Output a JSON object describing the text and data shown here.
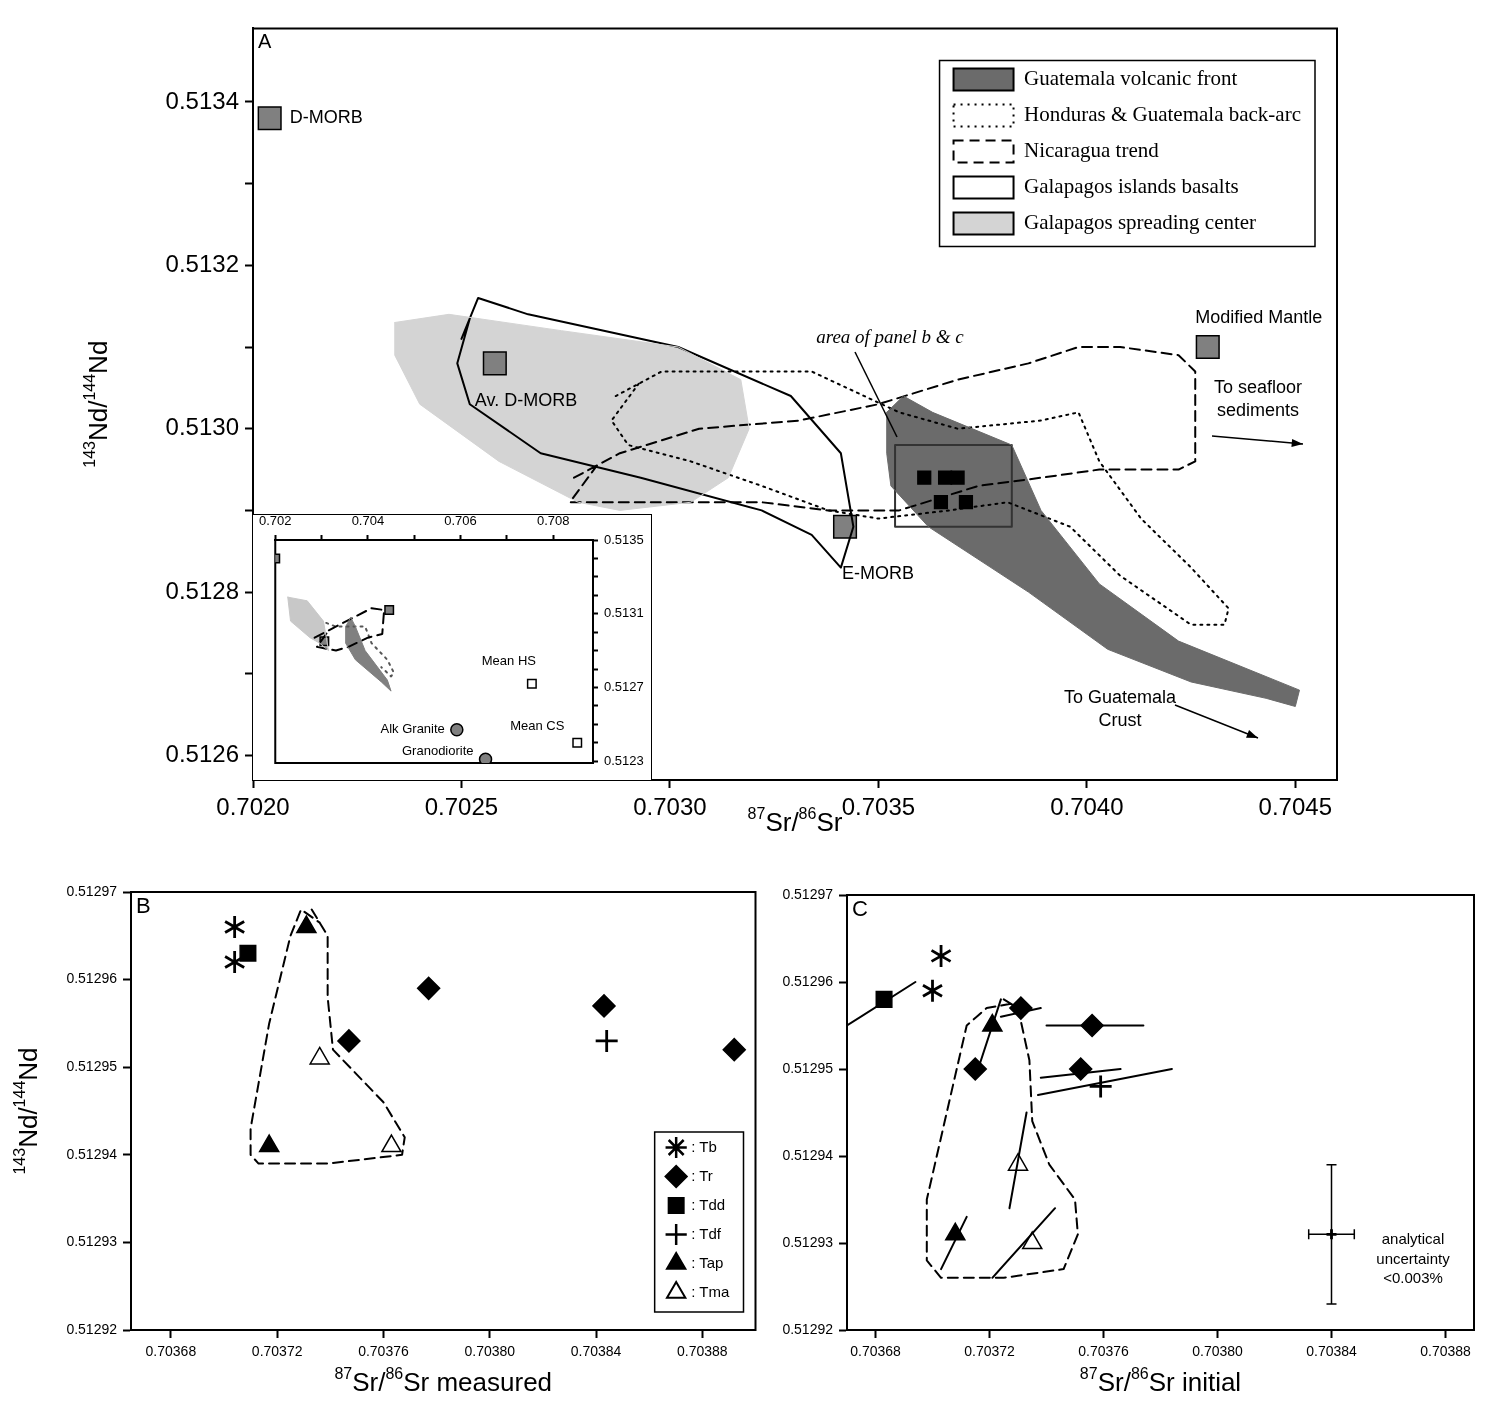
{
  "chart_data": [
    {
      "type": "scatter",
      "xlabel": "$^{87}$Sr/$^{86}$Sr",
      "ylabel": "$^{143}$Nd/$^{144}$Nd",
      "xlim": [
        0.702,
        0.7046
      ],
      "ylim": [
        0.51257,
        0.51349
      ],
      "xticks": [
        {
          "value": 0.702,
          "label": "0.7020"
        },
        0.7025,
        {
          "value": 0.703,
          "label": "0.7030"
        },
        0.7035,
        {
          "value": 0.704,
          "label": "0.7040"
        },
        0.7045
      ],
      "yticks": [
        0.5126,
        {
          "value": 0.5127,
          "label": null
        },
        0.5128,
        {
          "value": 0.5129,
          "label": null
        },
        {
          "value": 0.513,
          "label": "0.5130"
        },
        {
          "value": 0.5131,
          "label": null
        },
        0.5132,
        {
          "value": 0.5133,
          "label": null
        },
        0.5134
      ],
      "legend": "top right",
      "annotations": [
        "A",
        {
          "text": "D-MORB",
          "x": 0.70204,
          "y": 0.51338
        },
        {
          "text": "Av. D-MORB",
          "x": 0.70258,
          "y": 0.51308
        },
        {
          "text": "E-MORB",
          "x": 0.70342,
          "y": 0.51288
        },
        {
          "text": "Modified Mantle",
          "x": 0.70429,
          "y": 0.5131
        },
        "area of panel b & c",
        "To seafloor sediments",
        "To Guatemala Crust"
      ],
      "series": [
        {
          "name": "Galapagos spreading center",
          "type": "area",
          "color": "#d4d4d4",
          "x": [
            0.70234,
            0.70247,
            0.70274,
            0.70302,
            0.70317,
            0.70319,
            0.70314,
            0.70305,
            0.70288,
            0.70278,
            0.70259,
            0.7024,
            0.70234,
            0.70234
          ],
          "values": [
            0.51313,
            0.51314,
            0.51312,
            0.5131,
            0.51306,
            0.513,
            0.51294,
            0.51291,
            0.5129,
            0.51291,
            0.51296,
            0.51303,
            0.51309,
            0.51313
          ]
        },
        {
          "name": "Galapagos islands basalts",
          "type": "line",
          "line_style": "solid",
          "color": "#000000",
          "x": [
            0.7025,
            0.70254,
            0.70266,
            0.70302,
            0.70329,
            0.70341,
            0.70344,
            0.70341,
            0.70334,
            0.70322,
            0.70293,
            0.70269,
            0.70252,
            0.70249,
            0.70252
          ],
          "values": [
            0.51311,
            0.51316,
            0.51314,
            0.5131,
            0.51304,
            0.51297,
            0.51288,
            0.51283,
            0.51287,
            0.5129,
            0.51294,
            0.51297,
            0.51303,
            0.51308,
            0.513135
          ]
        },
        {
          "name": "Guatemala volcanic front",
          "type": "area",
          "color": "#6b6b6b",
          "x": [
            0.70352,
            0.70356,
            0.70363,
            0.70382,
            0.70389,
            0.70403,
            0.70422,
            0.70451,
            0.7045,
            0.70443,
            0.70425,
            0.70405,
            0.70386,
            0.70377,
            0.70362,
            0.70353,
            0.70352,
            0.70352
          ],
          "values": [
            0.51302,
            0.51304,
            0.51302,
            0.51298,
            0.5129,
            0.51281,
            0.51274,
            0.51268,
            0.51266,
            0.51267,
            0.51269,
            0.51273,
            0.5128,
            0.51283,
            0.51288,
            0.51293,
            0.51297,
            0.51302
          ]
        },
        {
          "name": "Honduras & Guatemala back-arc",
          "type": "line",
          "line_style": "dotted",
          "color": "#000000",
          "x": [
            0.70287,
            0.70298,
            0.70317,
            0.70334,
            0.70355,
            0.70369,
            0.70389,
            0.70398,
            0.70403,
            0.70413,
            0.70425,
            0.70434,
            0.70433,
            0.70425,
            0.70408,
            0.70396,
            0.70381,
            0.70367,
            0.7035,
            0.70338,
            0.70322,
            0.70305,
            0.7029,
            0.70286,
            0.702925
          ],
          "values": [
            0.51304,
            0.51307,
            0.51307,
            0.51307,
            0.51302,
            0.513,
            0.51301,
            0.51302,
            0.51296,
            0.51289,
            0.51283,
            0.51278,
            0.51276,
            0.51276,
            0.51282,
            0.51288,
            0.51291,
            0.5129,
            0.51289,
            0.5129,
            0.51293,
            0.51296,
            0.51298,
            0.51301,
            0.513055
          ]
        },
        {
          "name": "Nicaragua trend",
          "type": "line",
          "line_style": "dashed",
          "color": "#000000",
          "x": [
            0.70277,
            0.70288,
            0.70307,
            0.70331,
            0.7035,
            0.70369,
            0.70386,
            0.70398,
            0.70408,
            0.70422,
            0.70426,
            0.70426,
            0.70422,
            0.70403,
            0.70389,
            0.70374,
            0.70355,
            0.70338,
            0.70322,
            0.70302,
            0.70283,
            0.70276,
            0.702825
          ],
          "values": [
            0.51294,
            0.51297,
            0.513,
            0.51301,
            0.51303,
            0.51306,
            0.51308,
            0.5131,
            0.5131,
            0.51309,
            0.51307,
            0.51296,
            0.51295,
            0.51295,
            0.51294,
            0.51293,
            0.5129,
            0.5129,
            0.51291,
            0.51291,
            0.51291,
            0.51291,
            0.512955
          ]
        },
        {
          "type": "line",
          "line_style": "solid",
          "color": "#333333",
          "x": [
            0.70354,
            0.70382,
            0.70382,
            0.70354,
            0.70354,
            0.70368
          ],
          "values": [
            0.51298,
            0.51298,
            0.51288,
            0.51288,
            0.51298,
            0.51298
          ]
        },
        {
          "type": "scatter",
          "marker": "square",
          "color": "#808080",
          "x": [
            0.70204,
            0.70258,
            0.70342,
            0.70429
          ],
          "values": [
            0.51338,
            0.51308,
            0.51288,
            0.5131
          ]
        },
        {
          "type": "scatter",
          "marker": "square",
          "color": "#000000",
          "x": [
            0.70361,
            0.70366,
            0.70369,
            0.70365,
            0.70371
          ],
          "values": [
            0.51294,
            0.51294,
            0.51294,
            0.51291,
            0.51291
          ]
        }
      ]
    },
    {
      "type": "scatter",
      "xlim": [
        0.702,
        0.70886
      ],
      "ylim": [
        0.51229,
        0.5135
      ],
      "xticks": [
        0.702,
        {
          "value": 0.703,
          "label": null
        },
        0.704,
        {
          "value": 0.705,
          "label": null
        },
        0.706,
        {
          "value": 0.707,
          "label": null
        },
        0.708
      ],
      "yticks": [
        0.5123,
        {
          "value": 0.5124,
          "label": null
        },
        {
          "value": 0.5125,
          "label": null
        },
        {
          "value": 0.5126,
          "label": null
        },
        0.5127,
        {
          "value": 0.5128,
          "label": null
        },
        {
          "value": 0.5129,
          "label": null
        },
        {
          "value": 0.513,
          "label": null
        },
        0.5131,
        {
          "value": 0.5132,
          "label": null
        },
        {
          "value": 0.5133,
          "label": null
        },
        {
          "value": 0.5134,
          "label": null
        },
        0.5135
      ],
      "annotations": [
        {
          "text": "Mean HS",
          "x": 0.70754,
          "y": 0.51272
        },
        {
          "text": "Mean CS",
          "x": 0.70852,
          "y": 0.5124
        },
        {
          "text": "Alk Granite",
          "x": 0.70592,
          "y": 0.51247
        },
        {
          "text": "Granodiorite",
          "x": 0.70654,
          "y": 0.51231
        }
      ],
      "series": [
        {
          "type": "area",
          "color": "#c8c8c8",
          "x": [
            0.70227,
            0.70269,
            0.70304,
            0.70315,
            0.70296,
            0.70275,
            0.70233,
            0.70227
          ],
          "values": [
            0.51319,
            0.51317,
            0.51306,
            0.5129,
            0.51294,
            0.51297,
            0.51306,
            0.51319
          ]
        },
        {
          "type": "area",
          "color": "#808080",
          "x": [
            0.70363,
            0.70373,
            0.70394,
            0.70442,
            0.7045,
            0.70429,
            0.70373,
            0.70352,
            0.70352,
            0.70363
          ],
          "values": [
            0.51308,
            0.51303,
            0.5129,
            0.51274,
            0.51268,
            0.51273,
            0.51285,
            0.51294,
            0.51303,
            0.51308
          ]
        },
        {
          "type": "line",
          "line_style": "dashed",
          "color": "#000000",
          "x": [
            0.70285,
            0.70346,
            0.70408,
            0.70435,
            0.70431,
            0.704,
            0.70358,
            0.70331,
            0.7029,
            0.703155
          ],
          "values": [
            0.51297,
            0.51305,
            0.51313,
            0.51312,
            0.51299,
            0.51297,
            0.51292,
            0.5129,
            0.51292,
            0.51301
          ]
        },
        {
          "type": "line",
          "line_style": "dotted",
          "color": "#555555",
          "x": [
            0.7031,
            0.70331,
            0.70379,
            0.70394,
            0.70408,
            0.70442,
            0.70456,
            0.7045,
            0.70429
          ],
          "values": [
            0.51305,
            0.51303,
            0.51303,
            0.51303,
            0.51294,
            0.51285,
            0.51278,
            0.51276,
            0.51281
          ]
        },
        {
          "type": "scatter",
          "marker": "square",
          "color": "#808080",
          "x": [
            0.702,
            0.70446,
            0.70306
          ],
          "values": [
            0.5134,
            0.51312,
            0.51295
          ]
        },
        {
          "type": "scatter",
          "marker": "circle",
          "color": "#808080",
          "x": [
            0.70592,
            0.70654
          ],
          "values": [
            0.51247,
            0.51231
          ]
        },
        {
          "type": "scatter",
          "marker": "square",
          "color": "#ffffff",
          "x": [
            0.70754,
            0.70852
          ],
          "values": [
            0.51272,
            0.5124
          ]
        }
      ]
    },
    {
      "type": "scatter",
      "xlabel": "$^{87}$Sr/$^{86}$Sr measured",
      "ylabel": "$^{143}$Nd/$^{144}$Nd",
      "xlim": [
        0.703665,
        0.7039
      ],
      "ylim": [
        0.51292,
        0.51297
      ],
      "xticks": [
        0.70368,
        0.70372,
        0.70376,
        {
          "value": 0.7038,
          "label": "0.70380"
        },
        0.70384,
        0.70388
      ],
      "yticks": [
        0.51292,
        0.51293,
        0.51294,
        0.51295,
        0.51296,
        0.51297
      ],
      "legend": "bottom right",
      "annotations": [
        "B"
      ],
      "series": [
        {
          "type": "line",
          "line_style": "dashed",
          "color": "#000000",
          "x": [
            0.703733,
            0.703739,
            0.703739,
            0.703741,
            0.70376,
            0.703768,
            0.703767,
            0.703739,
            0.703713,
            0.70371,
            0.70371,
            0.703717,
            0.703725,
            0.703729,
            0.703736
          ],
          "values": [
            0.512968,
            0.512965,
            0.512958,
            0.512952,
            0.512946,
            0.512942,
            0.51294,
            0.512939,
            0.512939,
            0.51294,
            0.512943,
            0.512955,
            0.512965,
            0.512968,
            0.5129665
          ]
        },
        {
          "name": ": Tb",
          "type": "scatter",
          "marker": "cross",
          "color": "#000000",
          "x": [
            0.703704,
            0.703704
          ],
          "values": [
            0.512966,
            0.512962
          ]
        },
        {
          "name": ": Tr",
          "type": "scatter",
          "marker": "diamond",
          "color": "#000000",
          "x": [
            0.703747,
            0.703777,
            0.703843,
            0.703892
          ],
          "values": [
            0.512953,
            0.512959,
            0.512957,
            0.512952
          ]
        },
        {
          "name": ": Tdd",
          "type": "scatter",
          "marker": "square",
          "color": "#000000",
          "x": [
            0.703709
          ],
          "values": [
            0.512963
          ]
        },
        {
          "name": ": Tdf",
          "type": "scatter",
          "marker": "cross",
          "color": "#000000",
          "x": [
            0.703844
          ],
          "values": [
            0.512953
          ]
        },
        {
          "name": ": Tap",
          "type": "scatter",
          "marker": "triangle",
          "color": "#000000",
          "x": [
            0.703731,
            0.703717
          ],
          "values": [
            0.512966,
            0.512941
          ]
        },
        {
          "name": ": Tma",
          "type": "scatter",
          "marker": "triangle",
          "color": "#ffffff",
          "x": [
            0.703736,
            0.703763
          ],
          "values": [
            0.512951,
            0.512941
          ]
        }
      ]
    },
    {
      "type": "scatter",
      "xlabel": "$^{87}$Sr/$^{86}$Sr initial",
      "xlim": [
        0.70367,
        0.70389
      ],
      "ylim": [
        0.51292,
        0.51297
      ],
      "xticks": [
        0.70368,
        0.70372,
        0.70376,
        {
          "value": 0.7038,
          "label": "0.70380"
        },
        0.70384,
        0.70388
      ],
      "yticks": [
        0.51292,
        0.51293,
        0.51294,
        0.51295,
        0.51296,
        0.51297
      ],
      "annotations": [
        "C",
        "analytical uncertainty <0.003%"
      ],
      "series": [
        {
          "type": "line",
          "line_style": "dashed",
          "color": "#000000",
          "x": [
            0.703725,
            0.70373,
            0.703734,
            0.703735,
            0.703741,
            0.70375,
            0.703751,
            0.703746,
            0.703725,
            0.703703,
            0.703698,
            0.703698,
            0.703705,
            0.703712,
            0.703719,
            0.7037275
          ],
          "values": [
            0.512958,
            0.512957,
            0.512951,
            0.512944,
            0.512939,
            0.512935,
            0.512931,
            0.512927,
            0.512926,
            0.512926,
            0.512928,
            0.512935,
            0.512945,
            0.512955,
            0.512957,
            0.5129575
          ]
        },
        {
          "type": "line",
          "color": "#000000",
          "x": [
            0.70367,
            0.703694
          ],
          "values": [
            0.512955,
            0.51296
          ]
        },
        {
          "type": "line",
          "color": "#000000",
          "x": [
            0.703715,
            0.703724
          ],
          "values": [
            0.512949,
            0.512958
          ]
        },
        {
          "type": "line",
          "color": "#000000",
          "x": [
            0.703724,
            0.703738
          ],
          "values": [
            0.512956,
            0.512957
          ]
        },
        {
          "type": "line",
          "color": "#000000",
          "x": [
            0.70374,
            0.703774
          ],
          "values": [
            0.512955,
            0.512955
          ]
        },
        {
          "type": "line",
          "color": "#000000",
          "x": [
            0.703738,
            0.703766
          ],
          "values": [
            0.512949,
            0.51295
          ]
        },
        {
          "type": "line",
          "color": "#000000",
          "x": [
            0.703737,
            0.703784
          ],
          "values": [
            0.512947,
            0.51295
          ]
        },
        {
          "type": "line",
          "color": "#000000",
          "x": [
            0.703727,
            0.703733
          ],
          "values": [
            0.512934,
            0.512945
          ]
        },
        {
          "type": "line",
          "color": "#000000",
          "x": [
            0.703703,
            0.703712
          ],
          "values": [
            0.512927,
            0.512933
          ]
        },
        {
          "type": "line",
          "color": "#000000",
          "x": [
            0.703721,
            0.703743
          ],
          "values": [
            0.512926,
            0.512934
          ]
        },
        {
          "type": "scatter",
          "marker": "cross",
          "color": "#000000",
          "x": [
            0.703703,
            0.7037
          ],
          "values": [
            0.512963,
            0.512959
          ]
        },
        {
          "type": "scatter",
          "marker": "diamond",
          "color": "#000000",
          "x": [
            0.703715,
            0.703731,
            0.703756,
            0.703752
          ],
          "values": [
            0.51295,
            0.512957,
            0.512955,
            0.51295
          ]
        },
        {
          "type": "scatter",
          "marker": "square",
          "color": "#000000",
          "x": [
            0.703683
          ],
          "values": [
            0.512958
          ]
        },
        {
          "type": "scatter",
          "marker": "cross",
          "color": "#000000",
          "x": [
            0.703759
          ],
          "values": [
            0.512948
          ]
        },
        {
          "type": "scatter",
          "marker": "triangle",
          "color": "#000000",
          "x": [
            0.703721,
            0.703708
          ],
          "values": [
            0.512955,
            0.512931
          ]
        },
        {
          "type": "scatter",
          "marker": "triangle",
          "color": "#ffffff",
          "x": [
            0.70373,
            0.703735
          ],
          "values": [
            0.512939,
            0.51293
          ]
        },
        {
          "type": "scatter",
          "marker": "cross",
          "color": "#000000",
          "x": [
            0.70384
          ],
          "values": [
            0.512931
          ],
          "errors": [
            8e-06
          ],
          "xerrors": [
            8e-06
          ]
        }
      ]
    }
  ]
}
